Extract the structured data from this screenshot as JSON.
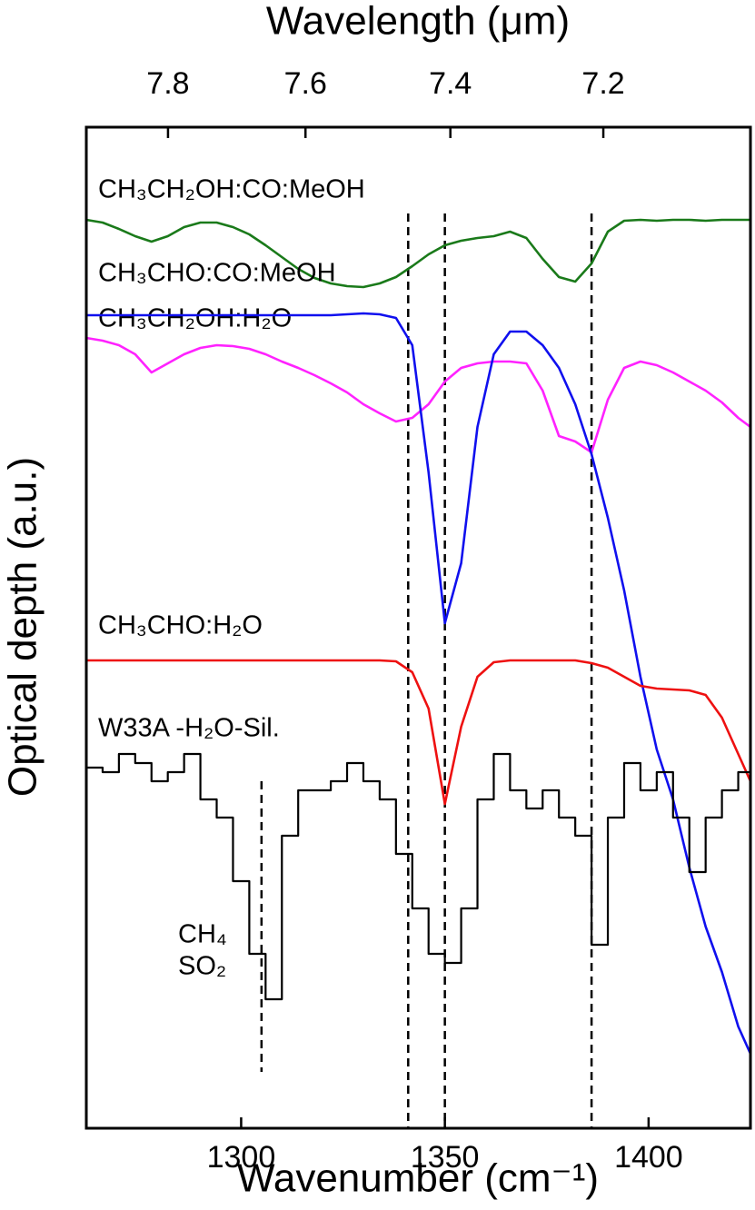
{
  "chart_data": {
    "type": "line",
    "x_label": "Wavenumber (cm⁻¹)",
    "x2_label": "Wavelength (μm)",
    "y_label": "Optical depth (a.u.)",
    "xlim": [
      1262,
      1425
    ],
    "xticks": [
      1300,
      1350,
      1400
    ],
    "x2ticks": [
      7.8,
      7.6,
      7.4,
      7.2
    ],
    "ylim": [
      0,
      11.02
    ],
    "x": [
      1262,
      1266,
      1270,
      1274,
      1278,
      1282,
      1286,
      1290,
      1294,
      1298,
      1302,
      1306,
      1310,
      1314,
      1318,
      1322,
      1326,
      1330,
      1334,
      1338,
      1342,
      1346,
      1350,
      1354,
      1358,
      1362,
      1366,
      1370,
      1374,
      1378,
      1382,
      1386,
      1390,
      1394,
      1398,
      1402,
      1406,
      1410,
      1414,
      1418,
      1422,
      1425
    ],
    "series": [
      {
        "name": "CH₃CH₂OH:CO:MeOH",
        "color": "#1a7a1a",
        "values": [
          10.0,
          9.97,
          9.9,
          9.82,
          9.76,
          9.82,
          9.92,
          9.97,
          9.97,
          9.92,
          9.84,
          9.72,
          9.59,
          9.46,
          9.36,
          9.3,
          9.27,
          9.26,
          9.3,
          9.37,
          9.49,
          9.62,
          9.72,
          9.77,
          9.8,
          9.82,
          9.87,
          9.8,
          9.57,
          9.37,
          9.32,
          9.52,
          9.87,
          9.99,
          10.0,
          9.99,
          10.0,
          10.0,
          9.99,
          10.0,
          10.0,
          10.0
        ]
      },
      {
        "name": "CH₃CH₂OH:H₂O",
        "color": "#ff22ff",
        "values": [
          8.7,
          8.67,
          8.62,
          8.52,
          8.32,
          8.42,
          8.52,
          8.59,
          8.62,
          8.61,
          8.58,
          8.52,
          8.44,
          8.37,
          8.29,
          8.2,
          8.1,
          7.97,
          7.87,
          7.78,
          7.82,
          7.97,
          8.22,
          8.37,
          8.42,
          8.44,
          8.44,
          8.42,
          8.12,
          7.62,
          7.56,
          7.44,
          8.02,
          8.37,
          8.44,
          8.4,
          8.32,
          8.22,
          8.12,
          7.99,
          7.82,
          7.72
        ]
      },
      {
        "name": "CH₃CHO:CO:MeOH",
        "color": "#1010ee",
        "values": [
          8.95,
          8.95,
          8.95,
          8.95,
          8.95,
          8.95,
          8.95,
          8.95,
          8.95,
          8.95,
          8.95,
          8.95,
          8.95,
          8.95,
          8.95,
          8.95,
          8.96,
          8.97,
          8.96,
          8.92,
          8.62,
          7.22,
          5.56,
          6.22,
          7.72,
          8.52,
          8.77,
          8.77,
          8.62,
          8.37,
          7.97,
          7.42,
          6.72,
          5.92,
          4.97,
          4.17,
          3.62,
          2.87,
          2.22,
          1.72,
          1.12,
          0.82
        ]
      },
      {
        "name": "CH₃CHO:H₂O",
        "color": "#ee1111",
        "values": [
          5.15,
          5.15,
          5.15,
          5.15,
          5.15,
          5.15,
          5.15,
          5.15,
          5.15,
          5.15,
          5.15,
          5.15,
          5.15,
          5.15,
          5.15,
          5.15,
          5.15,
          5.15,
          5.15,
          5.14,
          5.02,
          4.62,
          3.57,
          4.42,
          4.97,
          5.13,
          5.15,
          5.15,
          5.15,
          5.15,
          5.15,
          5.12,
          5.07,
          4.97,
          4.87,
          4.84,
          4.83,
          4.82,
          4.77,
          4.52,
          4.12,
          3.82
        ]
      },
      {
        "name": "W33A -H₂O-Sil.",
        "color": "#000000",
        "drawstyle": "steps",
        "values": [
          3.97,
          3.92,
          4.12,
          4.02,
          3.82,
          3.92,
          4.12,
          3.62,
          3.42,
          2.72,
          1.92,
          1.42,
          3.22,
          3.72,
          3.72,
          3.82,
          4.02,
          3.82,
          3.62,
          3.02,
          2.42,
          1.92,
          1.82,
          2.42,
          3.62,
          4.12,
          3.72,
          3.52,
          3.72,
          3.42,
          3.22,
          2.02,
          3.42,
          4.02,
          3.72,
          3.92,
          3.42,
          2.82,
          3.42,
          3.72,
          3.92,
          3.62
        ]
      }
    ],
    "vlines": [
      {
        "x": 1305,
        "y": [
          3.82,
          0.62
        ]
      },
      {
        "x": 1341,
        "y": [
          10.07,
          0
        ]
      },
      {
        "x": 1350,
        "y": [
          10.07,
          0
        ]
      },
      {
        "x": 1386,
        "y": [
          10.07,
          0
        ]
      }
    ],
    "annotations": [
      "CH₄",
      "SO₂"
    ]
  }
}
